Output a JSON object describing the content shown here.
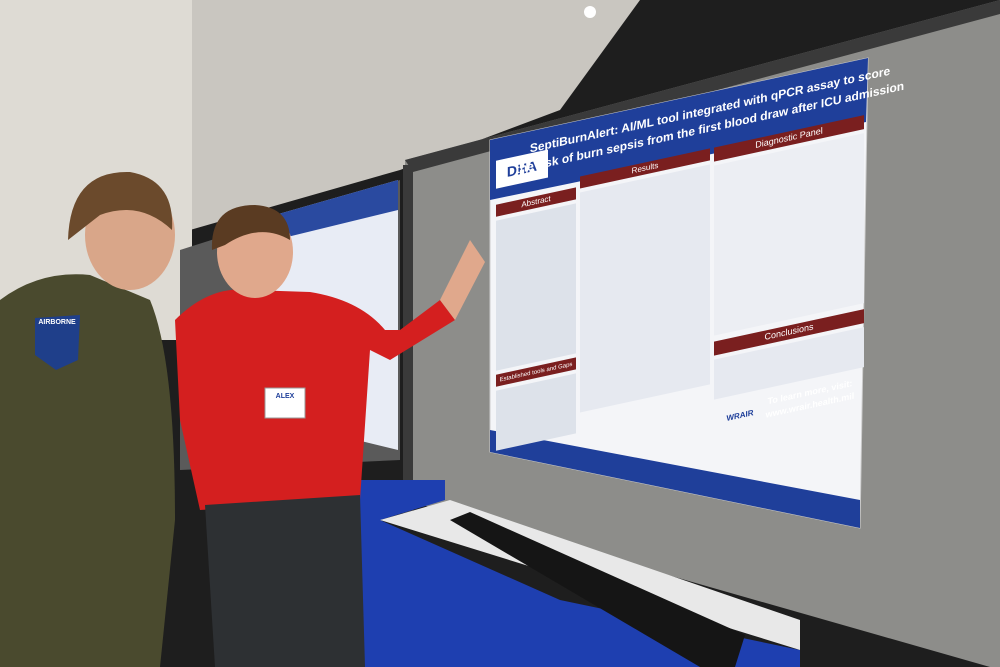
{
  "poster": {
    "title_lines": [
      "SeptiBurnAlert: AI/ML tool integrated with qPCR assay to score",
      "the risk of burn sepsis from the first blood draw after ICU admission"
    ],
    "logo": "DHA",
    "sections": [
      "Abstract",
      "Results",
      "Diagnostic Panel",
      "Established tools and Gaps",
      "Conclusions"
    ],
    "footer": {
      "prompt": "To learn more, visit:",
      "url": "www.wrair.health.mil",
      "logo": "WRAIR"
    }
  },
  "badge": {
    "name": "ALEX"
  },
  "patch": "AIRBORNE"
}
